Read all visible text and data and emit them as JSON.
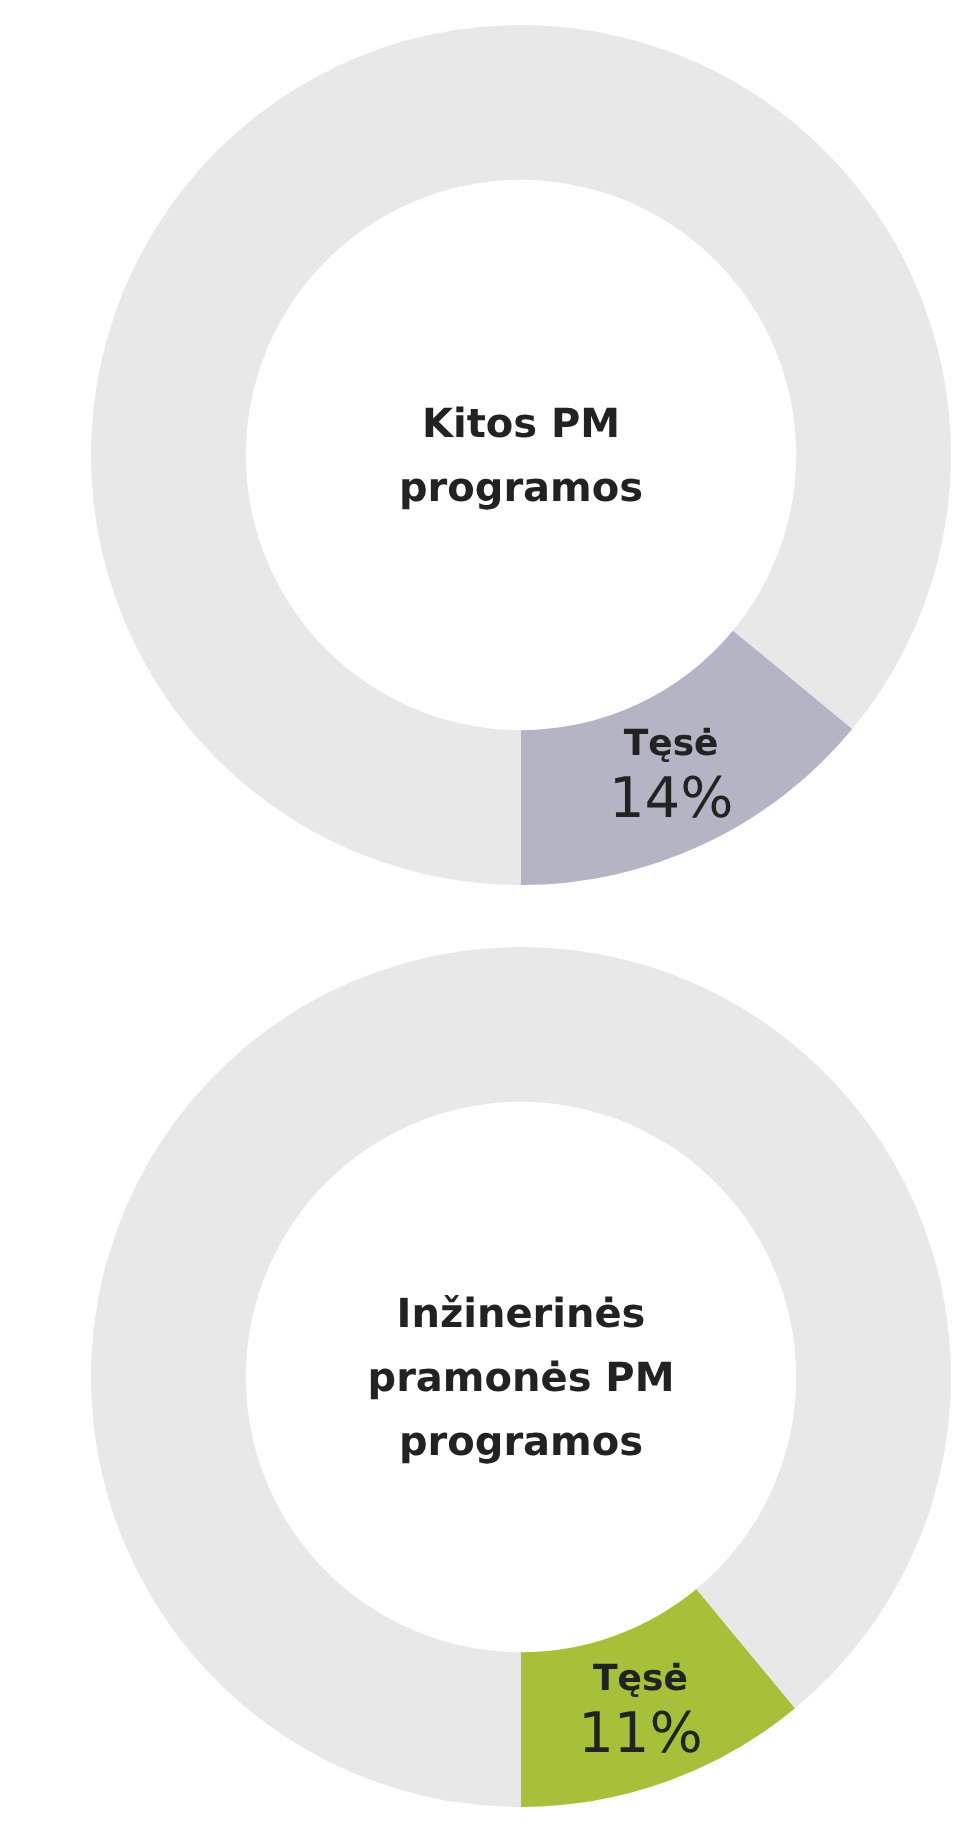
{
  "chart_data": [
    {
      "type": "donut",
      "title": "Kitos PM programos",
      "categories": [
        "Tęsė",
        null
      ],
      "values": [
        14,
        86
      ],
      "value_labels": [
        "14%",
        null
      ],
      "colors": [
        "#b4b4c4",
        "#e8e8e8"
      ]
    },
    {
      "type": "donut",
      "title": "Inžinerinės pramonės PM programos",
      "categories": [
        "Tęsė",
        null
      ],
      "values": [
        11,
        89
      ],
      "value_labels": [
        "11%",
        null
      ],
      "colors": [
        "#a8bf3a",
        "#e8e8e8"
      ]
    }
  ]
}
